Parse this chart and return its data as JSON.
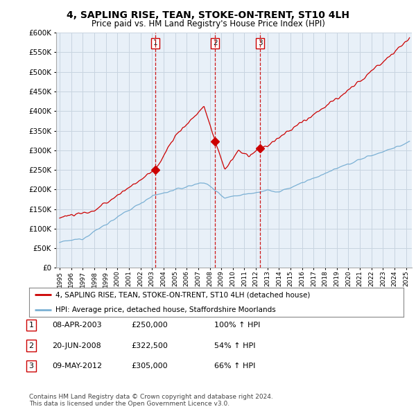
{
  "title": "4, SAPLING RISE, TEAN, STOKE-ON-TRENT, ST10 4LH",
  "subtitle": "Price paid vs. HM Land Registry's House Price Index (HPI)",
  "ylim": [
    0,
    600000
  ],
  "yticks": [
    0,
    50000,
    100000,
    150000,
    200000,
    250000,
    300000,
    350000,
    400000,
    450000,
    500000,
    550000,
    600000
  ],
  "xlim_start": 1994.7,
  "xlim_end": 2025.5,
  "sale_color": "#cc0000",
  "hpi_color": "#7ab0d4",
  "chart_bg": "#e8f0f8",
  "sale_dates": [
    2003.27,
    2008.47,
    2012.36
  ],
  "sale_prices": [
    250000,
    322500,
    305000
  ],
  "sale_labels": [
    "1",
    "2",
    "3"
  ],
  "legend_sale_label": "4, SAPLING RISE, TEAN, STOKE-ON-TRENT, ST10 4LH (detached house)",
  "legend_hpi_label": "HPI: Average price, detached house, Staffordshire Moorlands",
  "table_rows": [
    [
      "1",
      "08-APR-2003",
      "£250,000",
      "100% ↑ HPI"
    ],
    [
      "2",
      "20-JUN-2008",
      "£322,500",
      "54% ↑ HPI"
    ],
    [
      "3",
      "09-MAY-2012",
      "£305,000",
      "66% ↑ HPI"
    ]
  ],
  "footnote": "Contains HM Land Registry data © Crown copyright and database right 2024.\nThis data is licensed under the Open Government Licence v3.0.",
  "background_color": "#ffffff",
  "grid_color": "#c8d4e0"
}
